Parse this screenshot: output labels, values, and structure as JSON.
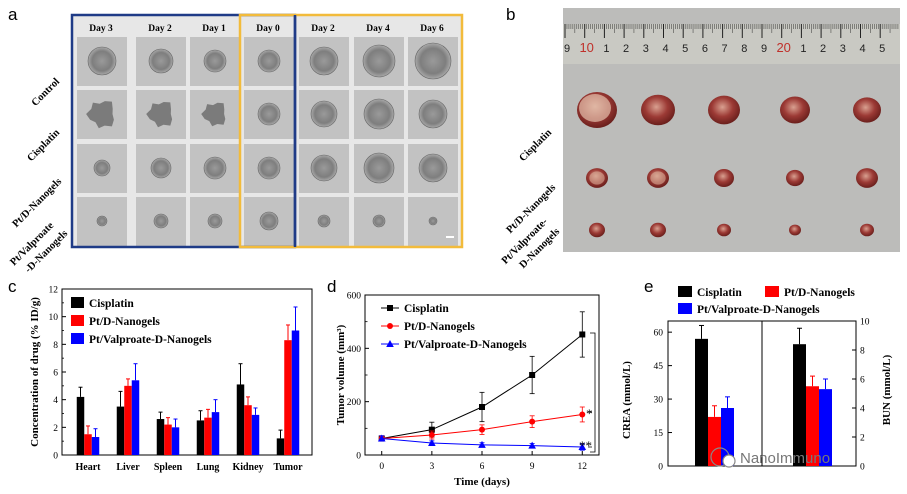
{
  "panel_a": {
    "label": "a",
    "days": [
      "Day 3",
      "Day 2",
      "Day 1",
      "Day 0",
      "Day 2",
      "Day 4",
      "Day 6"
    ],
    "rows": [
      "Control",
      "Cisplatin",
      "Pt/D-Nanogels"
    ],
    "row4_line1": "Pt/Valproate",
    "row4_line2": "-D-Nanogels",
    "box_colors": {
      "pretreat": "#1f3b87",
      "treat": "#f2bb3b"
    }
  },
  "panel_b": {
    "label": "b",
    "ruler_numbers": [
      "9",
      "10",
      "1",
      "2",
      "3",
      "4",
      "5",
      "6",
      "7",
      "8",
      "9",
      "20",
      "1",
      "2",
      "3",
      "4",
      "5"
    ],
    "rows": [
      "Cisplatin",
      "Pt/D-Nanogels"
    ],
    "row3_line1": "Pt/Valproate-",
    "row3_line2": "D-Nanogels"
  },
  "panel_c": {
    "label": "c"
  },
  "panel_d": {
    "label": "d",
    "sig_red": "*",
    "sig_blue": "**"
  },
  "panel_e": {
    "label": "e",
    "watermark": "NanoImmuno"
  },
  "chart_data": [
    {
      "id": "c",
      "type": "bar",
      "ylabel": "Concentration of drug (% ID/g)",
      "categories": [
        "Heart",
        "Liver",
        "Spleen",
        "Lung",
        "Kidney",
        "Tumor"
      ],
      "ylim": [
        0,
        12
      ],
      "yticks": [
        "0",
        "2",
        "4",
        "6",
        "8",
        "10",
        "12"
      ],
      "series": [
        {
          "name": "Cisplatin",
          "color": "#000000",
          "values": [
            4.2,
            3.5,
            2.6,
            2.5,
            5.1,
            1.2
          ],
          "errors": [
            0.7,
            1.1,
            0.5,
            0.7,
            1.5,
            0.6
          ]
        },
        {
          "name": "Pt/D-Nanogels",
          "color": "#ff0000",
          "values": [
            1.5,
            5.0,
            2.2,
            2.7,
            3.6,
            8.3
          ],
          "errors": [
            0.6,
            0.5,
            0.5,
            0.6,
            0.6,
            1.1
          ]
        },
        {
          "name": "Pt/Valproate-D-Nanogels",
          "color": "#0000ff",
          "values": [
            1.3,
            5.4,
            2.0,
            3.1,
            2.9,
            9.0
          ],
          "errors": [
            0.6,
            1.2,
            0.6,
            0.9,
            0.5,
            1.7
          ]
        }
      ]
    },
    {
      "id": "d",
      "type": "line",
      "xlabel": "Time (days)",
      "ylabel": "Tumor volume (mm³)",
      "x": [
        0,
        3,
        6,
        9,
        12
      ],
      "xticks": [
        "0",
        "3",
        "6",
        "9",
        "12"
      ],
      "ylim": [
        0,
        600
      ],
      "yticks": [
        "0",
        "200",
        "400",
        "600"
      ],
      "yticks_minor": [
        "100",
        "300",
        "500"
      ],
      "series": [
        {
          "name": "Cisplatin",
          "color": "#000000",
          "marker": "square",
          "values": [
            62,
            95,
            180,
            300,
            452
          ],
          "errors": [
            10,
            28,
            55,
            70,
            85
          ]
        },
        {
          "name": "Pt/D-Nanogels",
          "color": "#ff0000",
          "marker": "circle",
          "values": [
            62,
            75,
            95,
            125,
            152
          ],
          "errors": [
            10,
            15,
            18,
            22,
            28
          ]
        },
        {
          "name": "Pt/Valproate-D-Nanogels",
          "color": "#0000ff",
          "marker": "triangle",
          "values": [
            62,
            45,
            38,
            35,
            30
          ],
          "errors": [
            10,
            8,
            8,
            8,
            12
          ]
        }
      ]
    },
    {
      "id": "e",
      "type": "bar",
      "ylabel_left": "CREA (mmol/L)",
      "ylabel_right": "BUN (mmol/L)",
      "left_ylim": [
        0,
        65
      ],
      "left_yticks": [
        "0",
        "15",
        "30",
        "45",
        "60"
      ],
      "right_ylim": [
        0,
        10
      ],
      "right_yticks": [
        "0",
        "2",
        "4",
        "6",
        "8",
        "10"
      ],
      "series": [
        {
          "name": "Cisplatin",
          "color": "#000000",
          "crea": 57,
          "crea_err": 6,
          "bun": 8.4,
          "bun_err": 1.1
        },
        {
          "name": "Pt/D-Nanogels",
          "color": "#ff0000",
          "crea": 22,
          "crea_err": 5,
          "bun": 5.5,
          "bun_err": 0.7
        },
        {
          "name": "Pt/Valproate-D-Nanogels",
          "color": "#0000ff",
          "crea": 26,
          "crea_err": 5,
          "bun": 5.3,
          "bun_err": 0.7
        }
      ]
    }
  ]
}
